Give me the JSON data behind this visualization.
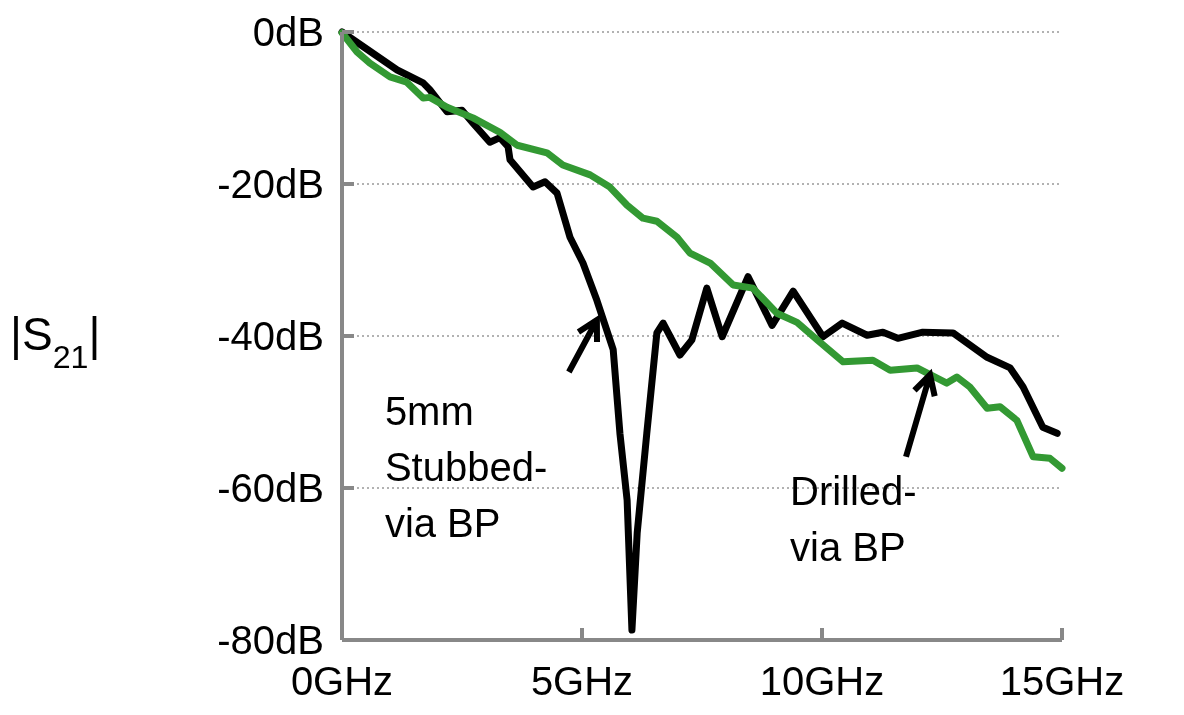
{
  "chart_data": {
    "type": "line",
    "ylabel": "|S$_{21}$|",
    "xlim": [
      0,
      15
    ],
    "xticks": [
      {
        "value": 0,
        "label": "0GHz"
      },
      {
        "value": 5,
        "label": "5GHz"
      },
      {
        "value": 10,
        "label": "10GHz"
      },
      {
        "value": 15,
        "label": "15GHz"
      }
    ],
    "ylim": [
      -80,
      0
    ],
    "yticks": [
      {
        "value": -80,
        "label": "-80dB"
      },
      {
        "value": -60,
        "label": "-60dB"
      },
      {
        "value": -40,
        "label": "-40dB"
      },
      {
        "value": -20,
        "label": "-20dB"
      },
      {
        "value": 0,
        "label": "0dB"
      }
    ],
    "grid": "y",
    "marker": "none",
    "line_style": "solid",
    "series": [
      {
        "color": "#000000",
        "x": [
          0,
          1.15,
          1.69,
          1.83,
          2.19,
          2.5,
          2.73,
          3.08,
          3.29,
          3.46,
          3.5,
          3.98,
          4.23,
          4.48,
          4.75,
          5.02,
          5.31,
          5.65,
          5.79,
          5.94,
          6.04,
          6.15,
          6.35,
          6.56,
          6.69,
          7.04,
          7.29,
          7.6,
          7.92,
          8.46,
          8.96,
          9.4,
          10.02,
          10.42,
          10.94,
          11.27,
          11.58,
          12.1,
          12.73,
          13.44,
          13.92,
          14.19,
          14.6,
          14.9
        ],
        "values": [
          0,
          -5,
          -6.7,
          -7.6,
          -10.5,
          -10.3,
          -12,
          -14.5,
          -13.9,
          -15.1,
          -16.8,
          -20.4,
          -19.7,
          -21.2,
          -27,
          -30.4,
          -35.3,
          -41.8,
          -52.8,
          -61.6,
          -78.7,
          -65.9,
          -52.8,
          -39.6,
          -38.3,
          -42.5,
          -40.5,
          -33.7,
          -40.1,
          -32.2,
          -38.6,
          -34.1,
          -40.1,
          -38.3,
          -39.9,
          -39.5,
          -40.3,
          -39.5,
          -39.6,
          -42.8,
          -44.2,
          -46.7,
          -52,
          -52.8
        ]
      },
      {
        "color": "#339933",
        "x": [
          0,
          0.31,
          0.58,
          1,
          1.35,
          1.69,
          1.83,
          2.19,
          2.73,
          3.29,
          3.65,
          4.27,
          4.6,
          5.17,
          5.58,
          5.94,
          6.27,
          6.56,
          6.98,
          7.25,
          7.67,
          8.15,
          8.56,
          9.06,
          9.48,
          9.9,
          10.44,
          11.06,
          11.42,
          11.98,
          12.6,
          12.81,
          13.08,
          13.44,
          13.71,
          14.06,
          14.4,
          14.75,
          15
        ],
        "values": [
          -0.1,
          -2.6,
          -4.1,
          -5.9,
          -6.6,
          -8.7,
          -8.6,
          -9.9,
          -11.3,
          -13.2,
          -14.9,
          -15.9,
          -17.5,
          -18.8,
          -20.4,
          -22.8,
          -24.5,
          -24.9,
          -27,
          -29.1,
          -30.4,
          -33.3,
          -33.7,
          -37,
          -38.2,
          -40.5,
          -43.4,
          -43.2,
          -44.5,
          -44.2,
          -46.2,
          -45.4,
          -46.7,
          -49.5,
          -49.3,
          -51.1,
          -55.9,
          -56.1,
          -57.4
        ]
      }
    ],
    "annotations": [
      {
        "text": "5mm\nStubbed-\nvia BP",
        "x": 5.31,
        "y": -37.9
      },
      {
        "text": "Drilled-\nvia BP",
        "x": 12.25,
        "y": -45.1
      }
    ]
  }
}
